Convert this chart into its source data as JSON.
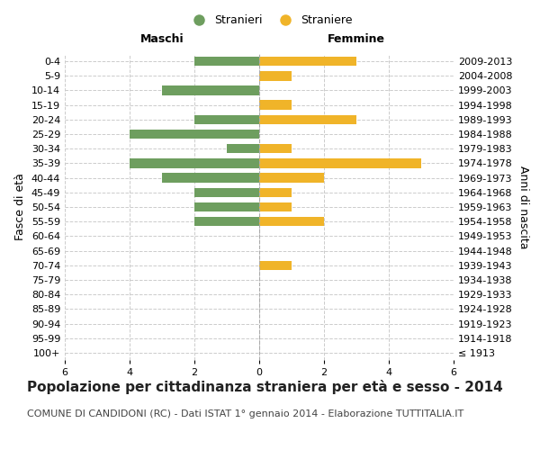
{
  "age_groups": [
    "100+",
    "95-99",
    "90-94",
    "85-89",
    "80-84",
    "75-79",
    "70-74",
    "65-69",
    "60-64",
    "55-59",
    "50-54",
    "45-49",
    "40-44",
    "35-39",
    "30-34",
    "25-29",
    "20-24",
    "15-19",
    "10-14",
    "5-9",
    "0-4"
  ],
  "birth_years": [
    "≤ 1913",
    "1914-1918",
    "1919-1923",
    "1924-1928",
    "1929-1933",
    "1934-1938",
    "1939-1943",
    "1944-1948",
    "1949-1953",
    "1954-1958",
    "1959-1963",
    "1964-1968",
    "1969-1973",
    "1974-1978",
    "1979-1983",
    "1984-1988",
    "1989-1993",
    "1994-1998",
    "1999-2003",
    "2004-2008",
    "2009-2013"
  ],
  "maschi_stranieri": [
    0,
    0,
    0,
    0,
    0,
    0,
    0,
    0,
    0,
    2,
    2,
    2,
    3,
    4,
    1,
    4,
    2,
    0,
    3,
    0,
    2
  ],
  "femmine_straniere": [
    0,
    0,
    0,
    0,
    0,
    0,
    1,
    0,
    0,
    2,
    1,
    1,
    2,
    5,
    1,
    0,
    3,
    1,
    0,
    1,
    3
  ],
  "male_color": "#6e9e5f",
  "female_color": "#f0b429",
  "xlim": 6,
  "title": "Popolazione per cittadinanza straniera per età e sesso - 2014",
  "subtitle": "COMUNE DI CANDIDONI (RC) - Dati ISTAT 1° gennaio 2014 - Elaborazione TUTTITALIA.IT",
  "ylabel_left": "Fasce di età",
  "ylabel_right": "Anni di nascita",
  "xlabel_maschi": "Maschi",
  "xlabel_femmine": "Femmine",
  "legend_male": "Stranieri",
  "legend_female": "Straniere",
  "bg_color": "#ffffff",
  "grid_color": "#cccccc",
  "title_fontsize": 11,
  "subtitle_fontsize": 8,
  "tick_fontsize": 8,
  "label_fontsize": 9
}
